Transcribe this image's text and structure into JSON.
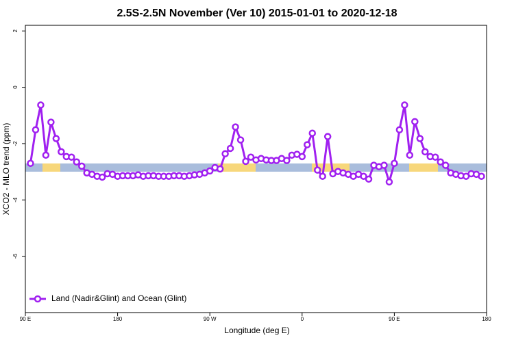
{
  "chart_data": {
    "type": "line",
    "title": "2.5S-2.5N November (Ver 10)   2015-01-01 to 2020-12-18",
    "x_label": "Longitude (deg E)",
    "y_label": "XCO2 - MLO trend (ppm)",
    "xlim": [
      90,
      540
    ],
    "ylim": [
      -8.0,
      2.2
    ],
    "xticks": [
      {
        "value": 90,
        "label": "90 E"
      },
      180,
      {
        "value": 270,
        "label": "90 W"
      },
      {
        "value": 360,
        "label": "0"
      },
      {
        "value": 450,
        "label": "90 E"
      },
      {
        "value": 540,
        "label": "180"
      }
    ],
    "yticks": [
      2,
      0,
      -2,
      -4,
      -6
    ],
    "legend": "bottomleft",
    "x": [
      95,
      100,
      105,
      110,
      115,
      120,
      125,
      130,
      135,
      140,
      145,
      150,
      155,
      160,
      165,
      170,
      175,
      180,
      185,
      190,
      195,
      200,
      205,
      210,
      215,
      220,
      225,
      230,
      235,
      240,
      245,
      250,
      255,
      260,
      265,
      270,
      275,
      280,
      285,
      290,
      295,
      300,
      305,
      310,
      315,
      320,
      325,
      330,
      335,
      340,
      345,
      350,
      355,
      360,
      365,
      370,
      375,
      380,
      385,
      390,
      395,
      400,
      405,
      410,
      415,
      420,
      425,
      430,
      435,
      440,
      445,
      450,
      455,
      460,
      465,
      470,
      475,
      480,
      485,
      490,
      495,
      500,
      505,
      510,
      515,
      520,
      525,
      530,
      535
    ],
    "series": [
      {
        "name": "Land (Nadir&Glint) and Ocean (Glint)",
        "color": "#a020f0",
        "values": [
          -2.7,
          -1.51,
          -0.63,
          -2.41,
          -1.24,
          -1.82,
          -2.29,
          -2.46,
          -2.48,
          -2.65,
          -2.8,
          -3.04,
          -3.09,
          -3.16,
          -3.19,
          -3.07,
          -3.09,
          -3.16,
          -3.14,
          -3.14,
          -3.14,
          -3.11,
          -3.16,
          -3.14,
          -3.14,
          -3.16,
          -3.16,
          -3.16,
          -3.14,
          -3.14,
          -3.16,
          -3.14,
          -3.11,
          -3.09,
          -3.04,
          -2.97,
          -2.85,
          -2.9,
          -2.36,
          -2.17,
          -1.41,
          -1.87,
          -2.63,
          -2.48,
          -2.58,
          -2.53,
          -2.58,
          -2.6,
          -2.6,
          -2.53,
          -2.6,
          -2.41,
          -2.38,
          -2.46,
          -2.04,
          -1.63,
          -2.94,
          -3.16,
          -1.75,
          -3.07,
          -2.99,
          -3.04,
          -3.09,
          -3.16,
          -3.09,
          -3.16,
          -3.26,
          -2.77,
          -2.82,
          -2.77,
          -3.36,
          -2.7,
          -1.51,
          -0.63,
          -2.41,
          -1.22,
          -1.82,
          -2.29,
          -2.46,
          -2.48,
          -2.65,
          -2.77,
          -3.04,
          -3.09,
          -3.14,
          -3.16,
          -3.07,
          -3.09,
          -3.16
        ]
      }
    ]
  }
}
